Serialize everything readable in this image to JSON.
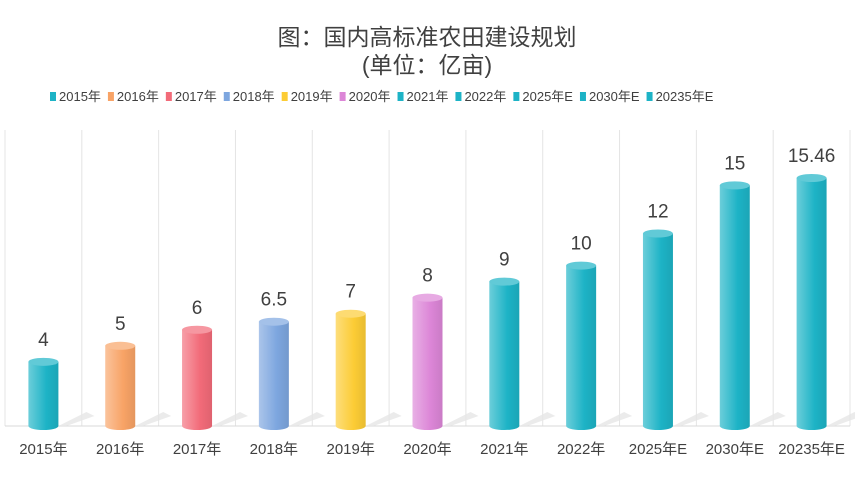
{
  "chart_data": {
    "type": "bar",
    "style": "3d-cylinder",
    "title": "图：国内高标准农田建设规划",
    "subtitle": "(单位：亿亩)",
    "categories": [
      "2015年",
      "2016年",
      "2017年",
      "2018年",
      "2019年",
      "2020年",
      "2021年",
      "2022年",
      "2025年E",
      "2030年E",
      "20235年E"
    ],
    "values": [
      4,
      5,
      6,
      6.5,
      7,
      8,
      9,
      10,
      12,
      15,
      15.46
    ],
    "data_labels": [
      "4",
      "5",
      "6",
      "6.5",
      "7",
      "8",
      "9",
      "10",
      "12",
      "15",
      "15.46"
    ],
    "colors": [
      "#1db3c6",
      "#f8a366",
      "#f26b79",
      "#7da6df",
      "#fccc35",
      "#dc86d7",
      "#1db3c6",
      "#1db3c6",
      "#1db3c6",
      "#1db3c6",
      "#1db3c6"
    ],
    "legend": {
      "position": "top",
      "entries": [
        "2015年",
        "2016年",
        "2017年",
        "2018年",
        "2019年",
        "2020年",
        "2021年",
        "2022年",
        "2025年E",
        "2030年E",
        "20235年E"
      ]
    },
    "ylim": [
      0,
      16.5
    ],
    "grid": "vertical category separators",
    "xlabel": "",
    "ylabel": ""
  }
}
